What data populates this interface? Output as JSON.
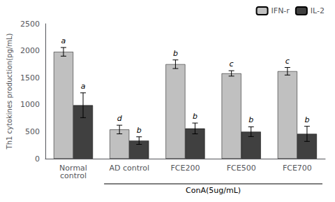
{
  "chart_data": {
    "type": "bar",
    "categories": [
      "Normal\ncontrol",
      "AD control",
      "FCE200",
      "FCE500",
      "FCE700"
    ],
    "series": [
      {
        "name": "IFN-r",
        "color": "#c0c0c0",
        "values": [
          1980,
          540,
          1750,
          1580,
          1620
        ],
        "errors": [
          80,
          80,
          80,
          50,
          70
        ],
        "annotations": [
          "a",
          "d",
          "b",
          "c",
          "c"
        ]
      },
      {
        "name": "IL-2",
        "color": "#404040",
        "values": [
          990,
          335,
          560,
          500,
          460
        ],
        "errors": [
          230,
          70,
          100,
          90,
          140
        ],
        "annotations": [
          "a",
          "b",
          "b",
          "b",
          "b"
        ]
      }
    ],
    "ylabel": "Th1 cytokines production(pg/mL)",
    "annotations": [
      {
        "text": "ConA(5ug/mL)",
        "categories": [
          "AD control",
          "FCE700"
        ]
      }
    ],
    "ylim": [
      0,
      2500
    ],
    "yticks": [
      0,
      500,
      1000,
      1500,
      2000,
      2500
    ],
    "legend": "upper right",
    "grid": false
  }
}
